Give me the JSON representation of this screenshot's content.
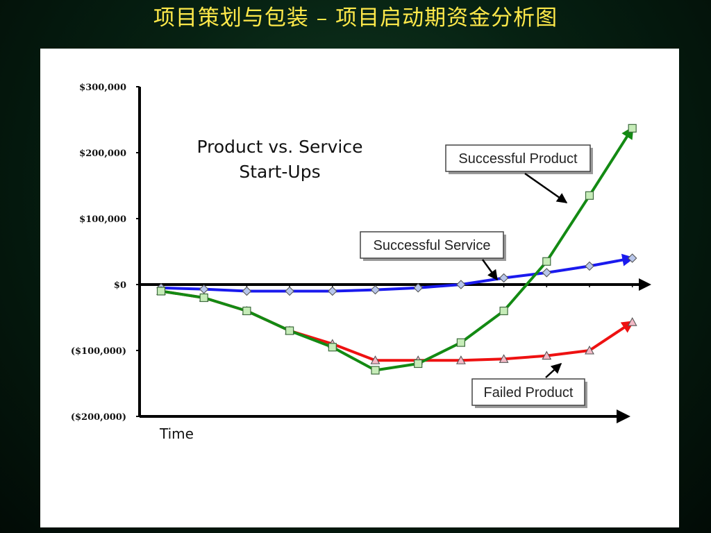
{
  "slide": {
    "title": "项目策划与包装 – 项目启动期资金分析图"
  },
  "chart_data": {
    "type": "line",
    "title_lines": [
      "Product vs. Service",
      "Start-Ups"
    ],
    "xlabel": "Time",
    "ylabel": "",
    "ylim": [
      -200000,
      300000
    ],
    "y_ticks": [
      300000,
      200000,
      100000,
      0,
      -100000,
      -200000
    ],
    "y_tick_labels": [
      "$300,000",
      "$200,000",
      "$100,000",
      "$0",
      "($100,000)",
      "($200,000)"
    ],
    "x": [
      1,
      2,
      3,
      4,
      5,
      6,
      7,
      8,
      9,
      10,
      11,
      12
    ],
    "grid": false,
    "legend": "none",
    "series": [
      {
        "name": "Successful Service",
        "color": "#1a1aee",
        "marker": "diamond",
        "values": [
          -5000,
          -7000,
          -10000,
          -10000,
          -10000,
          -8000,
          -5000,
          0,
          10000,
          18000,
          28000,
          40000
        ]
      },
      {
        "name": "Failed Product",
        "color": "#ee1111",
        "marker": "triangle",
        "values": [
          -10000,
          -20000,
          -40000,
          -70000,
          -90000,
          -115000,
          -115000,
          -115000,
          -113000,
          -108000,
          -100000,
          -57000
        ]
      },
      {
        "name": "Successful Product",
        "color": "#138a13",
        "marker": "square",
        "values": [
          -10000,
          -20000,
          -40000,
          -70000,
          -95000,
          -130000,
          -120000,
          -88000,
          -40000,
          35000,
          135000,
          237000
        ]
      }
    ]
  }
}
